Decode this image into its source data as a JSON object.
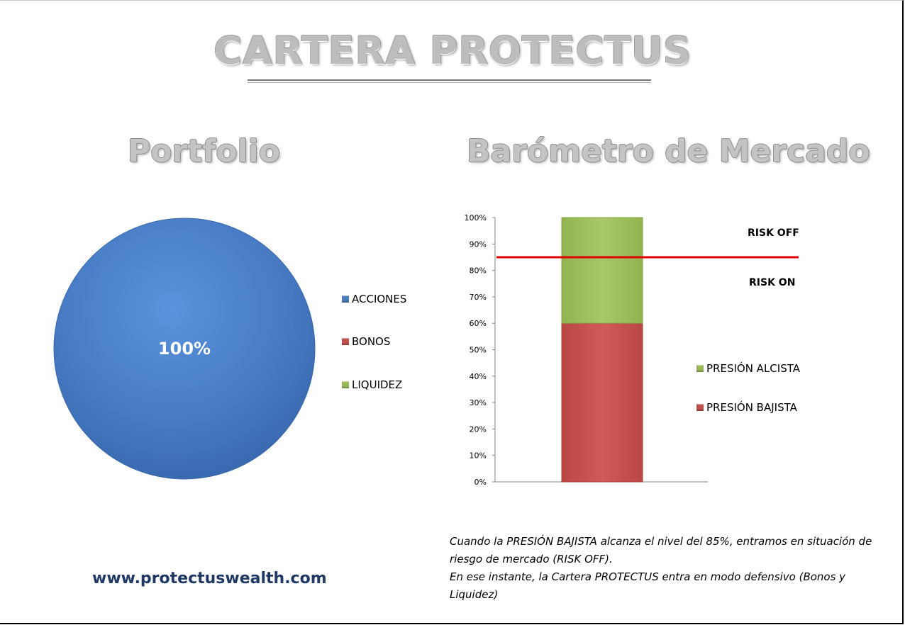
{
  "page": {
    "main_title": "CARTERA PROTECTUS",
    "portfolio_title": "Portfolio",
    "barometer_title": "Barómetro de Mercado",
    "website": "www.protectuswealth.com",
    "note_line1": "Cuando la PRESIÓN BAJISTA alcanza el nivel del 85%, entramos en situación de riesgo de mercado (RISK OFF).",
    "note_line2": "En ese instante, la Cartera PROTECTUS entra en modo defensivo (Bonos y Liquidez)"
  },
  "chart_data": [
    {
      "type": "pie",
      "title": "Portfolio",
      "categories": [
        "ACCIONES",
        "BONOS",
        "LIQUIDEZ"
      ],
      "values": [
        100,
        0,
        0
      ],
      "colors": [
        "#4a7ebb",
        "#c0504d",
        "#9bbb59"
      ],
      "data_labels": [
        "100%"
      ],
      "legend": "right"
    },
    {
      "type": "bar",
      "stacked": true,
      "title": "Barómetro de Mercado",
      "categories": [
        ""
      ],
      "series": [
        {
          "name": "PRESIÓN BAJISTA",
          "values": [
            60
          ],
          "color": "#c0504d"
        },
        {
          "name": "PRESIÓN ALCISTA",
          "values": [
            40
          ],
          "color": "#9bbb59"
        }
      ],
      "ylim": [
        0,
        100
      ],
      "y_ticks": [
        "0%",
        "10%",
        "20%",
        "30%",
        "40%",
        "50%",
        "60%",
        "70%",
        "80%",
        "90%",
        "100%"
      ],
      "threshold": {
        "value": 85,
        "color": "#e00000"
      },
      "annotations": [
        "RISK OFF",
        "RISK ON"
      ],
      "legend": "right"
    }
  ]
}
